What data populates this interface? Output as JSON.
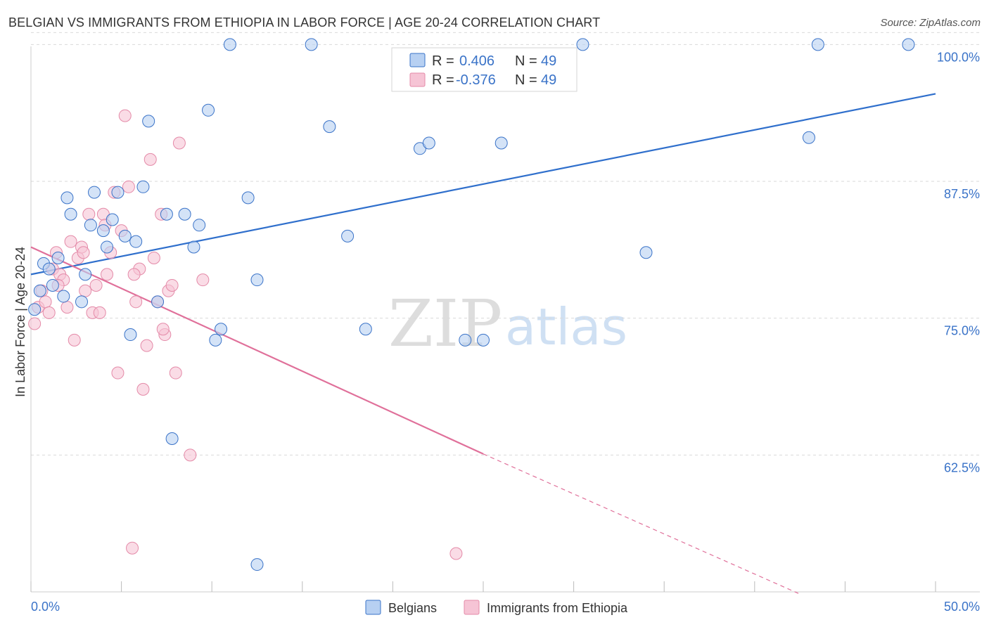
{
  "title": "BELGIAN VS IMMIGRANTS FROM ETHIOPIA IN LABOR FORCE | AGE 20-24 CORRELATION CHART",
  "source": "Source: ZipAtlas.com",
  "watermark": {
    "zip": "ZIP",
    "atlas": "atlas"
  },
  "colors": {
    "blue": "#3a73c8",
    "blue_fill": "#b7d0f2",
    "blue_line": "#2f6fcc",
    "pink_fill": "#f6c4d5",
    "pink_stroke": "#e48aa8",
    "pink_line": "#e0709a",
    "grid": "#d9d9d9"
  },
  "legend": {
    "row1": {
      "r_label": "R =",
      "r_value": "0.406",
      "n_label": "N =",
      "n_value": "49"
    },
    "row2": {
      "r_label": "R =",
      "r_value": "-0.376",
      "n_label": "N =",
      "n_value": "49"
    }
  },
  "chart_data": {
    "type": "scatter",
    "title": "BELGIAN VS IMMIGRANTS FROM ETHIOPIA IN LABOR FORCE | AGE 20-24 CORRELATION CHART",
    "ylabel": "In Labor Force | Age 20-24",
    "xlabel": "",
    "xlim": [
      0,
      50
    ],
    "ylim": [
      50,
      101.5
    ],
    "x_tick_labels": [
      "0.0%",
      "50.0%"
    ],
    "y_ticks": [
      62.5,
      75.0,
      87.5,
      100.0
    ],
    "y_tick_labels": [
      "62.5%",
      "75.0%",
      "87.5%",
      "100.0%"
    ],
    "grid": true,
    "legend_position": "top-center",
    "series": [
      {
        "name": "Belgians",
        "color": "blue",
        "r": 0.406,
        "n": 49,
        "trend": {
          "x": [
            0,
            50
          ],
          "y": [
            79.0,
            95.5
          ],
          "dashed_extension": false
        },
        "points": [
          [
            0.2,
            75.8
          ],
          [
            0.5,
            77.5
          ],
          [
            0.7,
            80.0
          ],
          [
            1.0,
            79.5
          ],
          [
            1.2,
            78.0
          ],
          [
            1.5,
            80.5
          ],
          [
            1.8,
            77.0
          ],
          [
            2.0,
            86.0
          ],
          [
            2.2,
            84.5
          ],
          [
            2.8,
            76.5
          ],
          [
            3.0,
            79.0
          ],
          [
            3.3,
            83.5
          ],
          [
            3.5,
            86.5
          ],
          [
            4.0,
            83.0
          ],
          [
            4.2,
            81.5
          ],
          [
            4.5,
            84.0
          ],
          [
            4.8,
            86.5
          ],
          [
            5.2,
            82.5
          ],
          [
            5.5,
            73.5
          ],
          [
            5.8,
            82.0
          ],
          [
            6.2,
            87.0
          ],
          [
            6.5,
            93.0
          ],
          [
            7.0,
            76.5
          ],
          [
            7.5,
            84.5
          ],
          [
            7.8,
            64.0
          ],
          [
            8.5,
            84.5
          ],
          [
            9.0,
            81.5
          ],
          [
            9.3,
            83.5
          ],
          [
            9.8,
            94.0
          ],
          [
            10.2,
            73.0
          ],
          [
            10.5,
            74.0
          ],
          [
            11.0,
            100.0
          ],
          [
            12.0,
            86.0
          ],
          [
            12.5,
            78.5
          ],
          [
            12.5,
            52.5
          ],
          [
            15.5,
            100.0
          ],
          [
            16.5,
            92.5
          ],
          [
            17.5,
            82.5
          ],
          [
            18.5,
            74.0
          ],
          [
            21.5,
            90.5
          ],
          [
            22.0,
            91.0
          ],
          [
            24.0,
            73.0
          ],
          [
            25.0,
            73.0
          ],
          [
            26.0,
            91.0
          ],
          [
            30.5,
            100.0
          ],
          [
            34.0,
            81.0
          ],
          [
            43.0,
            91.5
          ],
          [
            43.5,
            100.0
          ],
          [
            48.5,
            100.0
          ]
        ]
      },
      {
        "name": "Immigrants from Ethiopia",
        "color": "pink",
        "r": -0.376,
        "n": 49,
        "trend": {
          "x": [
            0,
            25
          ],
          "y": [
            81.5,
            62.6
          ],
          "dashed_extension": true,
          "dashed_to": [
            42.5,
            49.8
          ]
        },
        "points": [
          [
            0.2,
            74.5
          ],
          [
            0.4,
            76.0
          ],
          [
            0.6,
            77.5
          ],
          [
            0.8,
            76.5
          ],
          [
            1.0,
            75.5
          ],
          [
            1.2,
            79.5
          ],
          [
            1.4,
            81.0
          ],
          [
            1.6,
            79.0
          ],
          [
            1.8,
            78.5
          ],
          [
            2.0,
            76.0
          ],
          [
            2.2,
            82.0
          ],
          [
            2.4,
            73.0
          ],
          [
            2.6,
            80.5
          ],
          [
            2.8,
            81.5
          ],
          [
            3.0,
            77.5
          ],
          [
            3.2,
            84.5
          ],
          [
            3.4,
            75.5
          ],
          [
            3.6,
            78.0
          ],
          [
            3.8,
            75.5
          ],
          [
            4.0,
            84.5
          ],
          [
            4.2,
            79.0
          ],
          [
            4.4,
            81.0
          ],
          [
            4.6,
            86.5
          ],
          [
            4.8,
            70.0
          ],
          [
            5.0,
            83.0
          ],
          [
            5.2,
            93.5
          ],
          [
            5.4,
            87.0
          ],
          [
            5.6,
            54.0
          ],
          [
            5.8,
            76.5
          ],
          [
            6.0,
            79.5
          ],
          [
            6.2,
            68.5
          ],
          [
            6.4,
            72.5
          ],
          [
            6.6,
            89.5
          ],
          [
            6.8,
            80.5
          ],
          [
            7.0,
            76.5
          ],
          [
            7.2,
            84.5
          ],
          [
            7.4,
            73.5
          ],
          [
            7.6,
            77.5
          ],
          [
            7.8,
            78.0
          ],
          [
            8.0,
            70.0
          ],
          [
            8.2,
            91.0
          ],
          [
            8.8,
            62.5
          ],
          [
            9.5,
            78.5
          ],
          [
            23.5,
            53.5
          ],
          [
            1.5,
            78.0
          ],
          [
            2.9,
            81.0
          ],
          [
            4.1,
            83.5
          ],
          [
            5.7,
            79.0
          ],
          [
            7.3,
            74.0
          ]
        ]
      }
    ],
    "legend_entries": [
      "Belgians",
      "Immigrants from Ethiopia"
    ]
  }
}
